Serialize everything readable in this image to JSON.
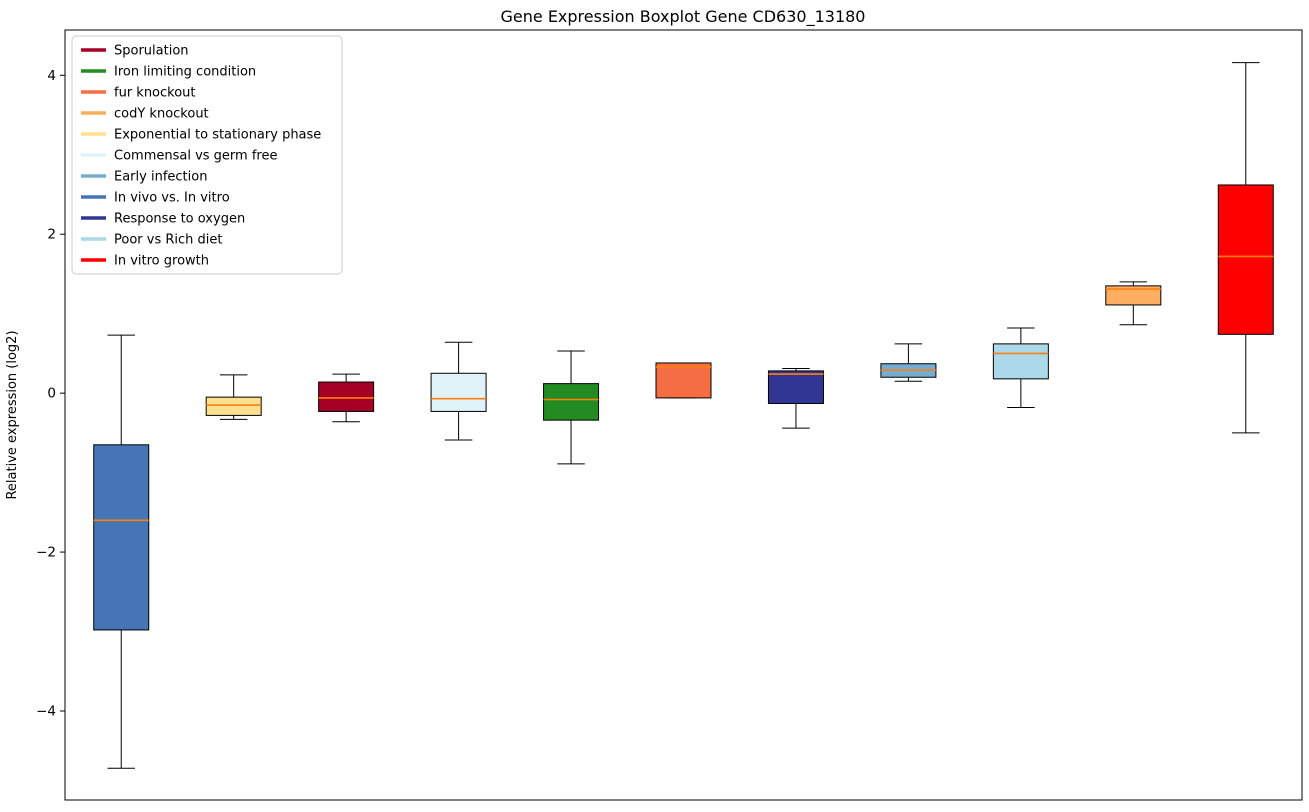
{
  "chart_data": {
    "type": "boxplot",
    "title": "Gene Expression Boxplot Gene CD630_13180",
    "xlabel": "",
    "ylabel": "Relative expression (log2)",
    "ylim": [
      -5.12,
      4.57
    ],
    "yticks": [
      4,
      2,
      0,
      -2,
      -4
    ],
    "grid": false,
    "legend_position": "upper left",
    "median_color": "#ff7f0e",
    "box_edge_color": "#000000",
    "whisker_color": "#000000",
    "legend": [
      {
        "label": "Sporulation",
        "color": "#A50026"
      },
      {
        "label": "Iron limiting condition",
        "color": "#228B22"
      },
      {
        "label": "fur knockout",
        "color": "#F46D43"
      },
      {
        "label": "codY knockout",
        "color": "#FDAE61"
      },
      {
        "label": "Exponential to stationary phase",
        "color": "#FEE090"
      },
      {
        "label": "Commensal vs germ free",
        "color": "#E0F3F8"
      },
      {
        "label": "Early infection",
        "color": "#74ADD1"
      },
      {
        "label": "In vivo vs. In vitro",
        "color": "#4575B4"
      },
      {
        "label": "Response to oxygen",
        "color": "#313695"
      },
      {
        "label": "Poor vs Rich diet",
        "color": "#ABD9E9"
      },
      {
        "label": "In vitro growth",
        "color": "#FF0000"
      }
    ],
    "boxes": [
      {
        "label": "In vivo vs. In vitro",
        "color": "#4575B4",
        "whislo": -4.72,
        "q1": -2.98,
        "med": -1.6,
        "q3": -0.65,
        "whishi": 0.73
      },
      {
        "label": "Exponential to stationary phase",
        "color": "#FEE090",
        "whislo": -0.33,
        "q1": -0.28,
        "med": -0.15,
        "q3": -0.05,
        "whishi": 0.23
      },
      {
        "label": "Sporulation",
        "color": "#A50026",
        "whislo": -0.36,
        "q1": -0.23,
        "med": -0.06,
        "q3": 0.14,
        "whishi": 0.24
      },
      {
        "label": "Commensal vs germ free",
        "color": "#E0F3F8",
        "whislo": -0.59,
        "q1": -0.23,
        "med": -0.07,
        "q3": 0.25,
        "whishi": 0.64
      },
      {
        "label": "Iron limiting condition",
        "color": "#228B22",
        "whislo": -0.89,
        "q1": -0.34,
        "med": -0.08,
        "q3": 0.12,
        "whishi": 0.53
      },
      {
        "label": "fur knockout",
        "color": "#F46D43",
        "whislo": -0.06,
        "q1": -0.06,
        "med": 0.33,
        "q3": 0.38,
        "whishi": 0.38
      },
      {
        "label": "Response to oxygen",
        "color": "#313695",
        "whislo": -0.44,
        "q1": -0.13,
        "med": 0.24,
        "q3": 0.28,
        "whishi": 0.31
      },
      {
        "label": "Early infection",
        "color": "#74ADD1",
        "whislo": 0.15,
        "q1": 0.2,
        "med": 0.29,
        "q3": 0.37,
        "whishi": 0.62
      },
      {
        "label": "Poor vs Rich diet",
        "color": "#ABD9E9",
        "whislo": -0.18,
        "q1": 0.18,
        "med": 0.5,
        "q3": 0.62,
        "whishi": 0.82
      },
      {
        "label": "codY knockout",
        "color": "#FDAE61",
        "whislo": 0.86,
        "q1": 1.11,
        "med": 1.31,
        "q3": 1.35,
        "whishi": 1.4
      },
      {
        "label": "In vitro growth",
        "color": "#FF0000",
        "whislo": -0.5,
        "q1": 0.74,
        "med": 1.72,
        "q3": 2.62,
        "whishi": 4.16
      }
    ]
  }
}
